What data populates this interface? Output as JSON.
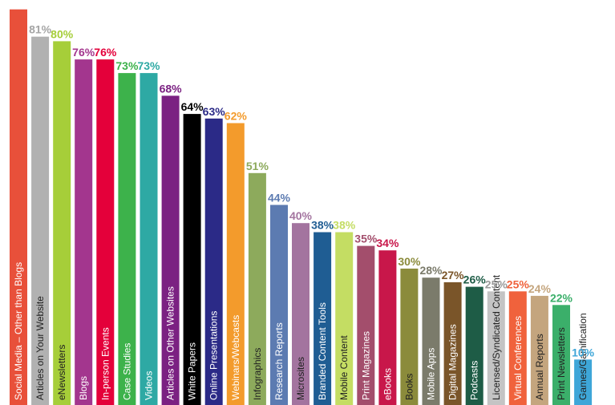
{
  "chart_data": {
    "type": "bar",
    "title": "",
    "xlabel": "",
    "ylabel": "",
    "ylim": [
      0,
      100
    ],
    "bars": [
      {
        "label": "Social Media – Other than Blogs",
        "value": 87,
        "value_label": "",
        "color": "#E8503A",
        "label_color": "#ffffff",
        "pct_color": "#E8503A"
      },
      {
        "label": "Articles on Your Website",
        "value": 81,
        "value_label": "81%",
        "color": "#B1B1B1",
        "label_color": "#222222",
        "pct_color": "#A5A5A5"
      },
      {
        "label": "eNewsletters",
        "value": 80,
        "value_label": "80%",
        "color": "#A6CE39",
        "label_color": "#222222",
        "pct_color": "#A6CE39"
      },
      {
        "label": "Blogs",
        "value": 76,
        "value_label": "76%",
        "color": "#A3368E",
        "label_color": "#ffffff",
        "pct_color": "#A3368E"
      },
      {
        "label": "In-person Events",
        "value": 76,
        "value_label": "76%",
        "color": "#E4003A",
        "label_color": "#ffffff",
        "pct_color": "#E4003A"
      },
      {
        "label": "Case Studies",
        "value": 73,
        "value_label": "73%",
        "color": "#3DB24B",
        "label_color": "#ffffff",
        "pct_color": "#3DB24B"
      },
      {
        "label": "Videos",
        "value": 73,
        "value_label": "73%",
        "color": "#2EA9A4",
        "label_color": "#ffffff",
        "pct_color": "#2EA9A4"
      },
      {
        "label": "Articles on Other Websites",
        "value": 68,
        "value_label": "68%",
        "color": "#7B2182",
        "label_color": "#ffffff",
        "pct_color": "#7B2182"
      },
      {
        "label": "White Papers",
        "value": 64,
        "value_label": "64%",
        "color": "#000000",
        "label_color": "#ffffff",
        "pct_color": "#000000"
      },
      {
        "label": "Online Presentations",
        "value": 63,
        "value_label": "63%",
        "color": "#2B2A87",
        "label_color": "#ffffff",
        "pct_color": "#2B2A87"
      },
      {
        "label": "Webinars/Webcasts",
        "value": 62,
        "value_label": "62%",
        "color": "#F39B2C",
        "label_color": "#ffffff",
        "pct_color": "#F39B2C"
      },
      {
        "label": "Infographics",
        "value": 51,
        "value_label": "51%",
        "color": "#8DAA5C",
        "label_color": "#222222",
        "pct_color": "#8DAA5C"
      },
      {
        "label": "Research Reports",
        "value": 44,
        "value_label": "44%",
        "color": "#5C7BB1",
        "label_color": "#ffffff",
        "pct_color": "#5C7BB1"
      },
      {
        "label": "Microsites",
        "value": 40,
        "value_label": "40%",
        "color": "#A3749F",
        "label_color": "#222222",
        "pct_color": "#A3749F"
      },
      {
        "label": "Branded Content Tools",
        "value": 38,
        "value_label": "38%",
        "color": "#1F5D93",
        "label_color": "#ffffff",
        "pct_color": "#1F5D93"
      },
      {
        "label": "Mobile Content",
        "value": 38,
        "value_label": "38%",
        "color": "#C4DD63",
        "label_color": "#222222",
        "pct_color": "#C4DD63"
      },
      {
        "label": "Print Magazines",
        "value": 35,
        "value_label": "35%",
        "color": "#A34E6C",
        "label_color": "#ffffff",
        "pct_color": "#A34E6C"
      },
      {
        "label": "eBooks",
        "value": 34,
        "value_label": "34%",
        "color": "#C8174A",
        "label_color": "#ffffff",
        "pct_color": "#C8174A"
      },
      {
        "label": "Books",
        "value": 30,
        "value_label": "30%",
        "color": "#8B8B3B",
        "label_color": "#222222",
        "pct_color": "#8B8B3B"
      },
      {
        "label": "Mobile Apps",
        "value": 28,
        "value_label": "28%",
        "color": "#7B7B6B",
        "label_color": "#ffffff",
        "pct_color": "#7B7B6B"
      },
      {
        "label": "Digital Magazines",
        "value": 27,
        "value_label": "27%",
        "color": "#7A5529",
        "label_color": "#ffffff",
        "pct_color": "#7A5529"
      },
      {
        "label": "Podcasts",
        "value": 26,
        "value_label": "26%",
        "color": "#1E5C46",
        "label_color": "#ffffff",
        "pct_color": "#1E5C46"
      },
      {
        "label": "Licensed/Syndicated Content",
        "value": 25,
        "value_label": "25%",
        "color": "#C4C4C4",
        "label_color": "#222222",
        "pct_color": "#9A9A9A"
      },
      {
        "label": "Virtual Conferences",
        "value": 25,
        "value_label": "25%",
        "color": "#F0623C",
        "label_color": "#ffffff",
        "pct_color": "#F0623C"
      },
      {
        "label": "Annual Reports",
        "value": 24,
        "value_label": "24%",
        "color": "#C4A57E",
        "label_color": "#222222",
        "pct_color": "#C4A57E"
      },
      {
        "label": "Print Newsletters",
        "value": 22,
        "value_label": "22%",
        "color": "#3BAF6A",
        "label_color": "#222222",
        "pct_color": "#3BAF6A"
      },
      {
        "label": "Games/Gamification",
        "value": 10,
        "value_label": "10%",
        "color": "#3EA6D8",
        "label_color": "#222222",
        "pct_color": "#3EA6D8"
      }
    ]
  }
}
